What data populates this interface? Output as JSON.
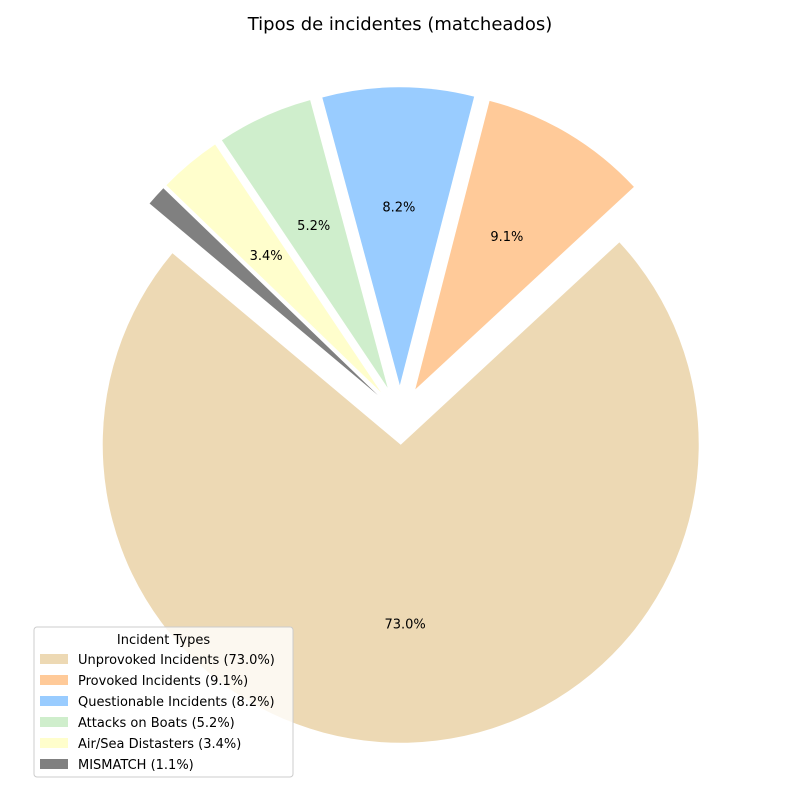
{
  "chart_data": {
    "type": "pie",
    "title": "Tipos de incidentes (matcheados)",
    "start_angle_deg": 140,
    "direction": "counterclockwise",
    "explode": 0.1,
    "slices": [
      {
        "label": "Unprovoked Incidents",
        "value": 73.0,
        "pct_label": "73.0%",
        "color": "#EDD9B4"
      },
      {
        "label": "Provoked Incidents",
        "value": 9.1,
        "pct_label": "9.1%",
        "color": "#FFCA99"
      },
      {
        "label": "Questionable Incidents",
        "value": 8.2,
        "pct_label": "8.2%",
        "color": "#99CCFF"
      },
      {
        "label": "Attacks on Boats",
        "value": 5.2,
        "pct_label": "5.2%",
        "color": "#CFEECC"
      },
      {
        "label": "Air/Sea Distasters",
        "value": 3.4,
        "pct_label": "3.4%",
        "color": "#FFFECC"
      },
      {
        "label": "MISMATCH",
        "value": 1.1,
        "pct_label": "1.1%",
        "color": "#808080"
      }
    ],
    "legend": {
      "title": "Incident Types",
      "placement": "lower-left",
      "entries": [
        "Unprovoked Incidents (73.0%)",
        "Provoked Incidents (9.1%)",
        "Questionable Incidents (8.2%)",
        "Attacks on Boats (5.2%)",
        "Air/Sea Distasters (3.4%)",
        "MISMATCH (1.1%)"
      ]
    }
  }
}
